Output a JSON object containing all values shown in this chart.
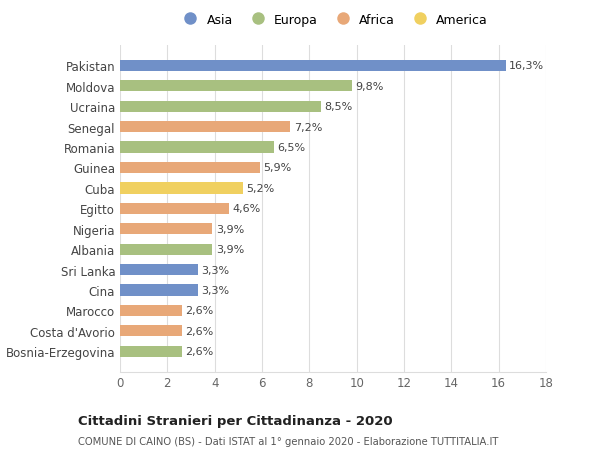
{
  "countries": [
    "Pakistan",
    "Moldova",
    "Ucraina",
    "Senegal",
    "Romania",
    "Guinea",
    "Cuba",
    "Egitto",
    "Nigeria",
    "Albania",
    "Sri Lanka",
    "Cina",
    "Marocco",
    "Costa d'Avorio",
    "Bosnia-Erzegovina"
  ],
  "values": [
    16.3,
    9.8,
    8.5,
    7.2,
    6.5,
    5.9,
    5.2,
    4.6,
    3.9,
    3.9,
    3.3,
    3.3,
    2.6,
    2.6,
    2.6
  ],
  "labels": [
    "16,3%",
    "9,8%",
    "8,5%",
    "7,2%",
    "6,5%",
    "5,9%",
    "5,2%",
    "4,6%",
    "3,9%",
    "3,9%",
    "3,3%",
    "3,3%",
    "2,6%",
    "2,6%",
    "2,6%"
  ],
  "continents": [
    "Asia",
    "Europa",
    "Europa",
    "Africa",
    "Europa",
    "Africa",
    "America",
    "Africa",
    "Africa",
    "Europa",
    "Asia",
    "Asia",
    "Africa",
    "Africa",
    "Europa"
  ],
  "continent_colors": {
    "Asia": "#7090C8",
    "Europa": "#A8C080",
    "Africa": "#E8A878",
    "America": "#F0D060"
  },
  "legend_order": [
    "Asia",
    "Europa",
    "Africa",
    "America"
  ],
  "xlim": [
    0,
    18
  ],
  "xticks": [
    0,
    2,
    4,
    6,
    8,
    10,
    12,
    14,
    16,
    18
  ],
  "title": "Cittadini Stranieri per Cittadinanza - 2020",
  "subtitle": "COMUNE DI CAINO (BS) - Dati ISTAT al 1° gennaio 2020 - Elaborazione TUTTITALIA.IT",
  "bg_color": "#ffffff",
  "grid_color": "#dddddd",
  "bar_height": 0.55
}
